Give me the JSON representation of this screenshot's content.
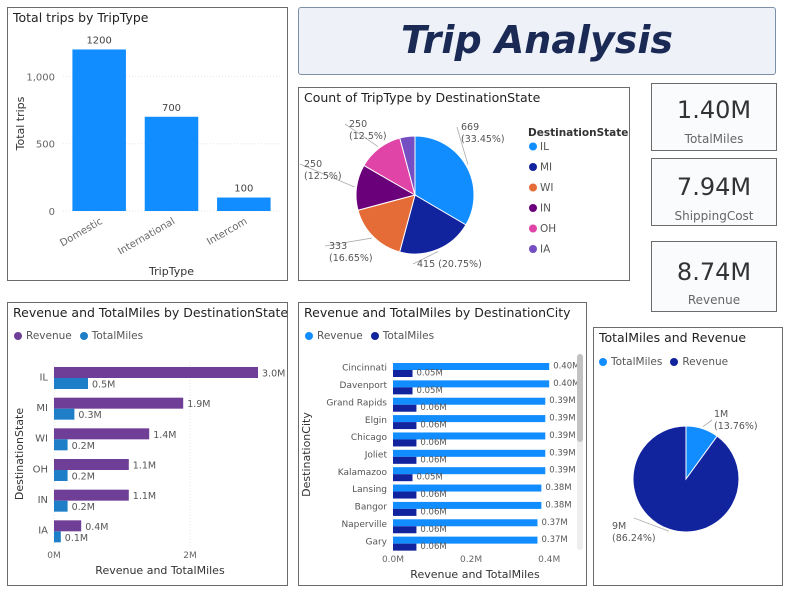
{
  "header": {
    "title": "Trip Analysis"
  },
  "cards": [
    {
      "value": "1.40M",
      "label": "TotalMiles"
    },
    {
      "value": "7.94M",
      "label": "ShippingCost"
    },
    {
      "value": "8.74M",
      "label": "Revenue"
    }
  ],
  "colors": {
    "bar_blue": "#118dff",
    "navy": "#12239e",
    "orange": "#e66c37",
    "purple": "#6b007b",
    "magenta": "#e044a7",
    "violet": "#744ec2",
    "dark_purple": "#6f3e96",
    "mid_blue": "#1e7ec8"
  },
  "chart_data": [
    {
      "type": "bar",
      "title": "Total trips by TripType",
      "xlabel": "TripType",
      "ylabel": "Total trips",
      "categories": [
        "Domestic",
        "International",
        "Intercom"
      ],
      "values": [
        1200,
        700,
        100
      ],
      "data_labels": [
        "1200",
        "700",
        "100"
      ],
      "yticks": [
        0,
        500,
        1000
      ],
      "ytick_labels": [
        "0",
        "500",
        "1,000"
      ],
      "ylim": [
        0,
        1300
      ]
    },
    {
      "type": "pie",
      "title": "Count of TripType by DestinationState",
      "legend_title": "DestinationState",
      "legend_position": "right",
      "categories": [
        "IL",
        "MI",
        "WI",
        "IN",
        "OH",
        "IA"
      ],
      "values": [
        669,
        415,
        333,
        250,
        250,
        83
      ],
      "labels": [
        "669\n(33.45%)",
        "415 (20.75%)",
        "333\n(16.65%)",
        "250\n(12.5%)",
        "250\n(12.5%)",
        ""
      ],
      "colors": [
        "#118dff",
        "#12239e",
        "#e66c37",
        "#6b007b",
        "#e044a7",
        "#744ec2"
      ]
    },
    {
      "type": "bar",
      "orientation": "horizontal",
      "title": "Revenue and TotalMiles by DestinationState",
      "xlabel": "Revenue and TotalMiles",
      "ylabel": "DestinationState",
      "legend_position": "top-left",
      "categories": [
        "IL",
        "MI",
        "WI",
        "OH",
        "IN",
        "IA"
      ],
      "series": [
        {
          "name": "Revenue",
          "values": [
            3.0,
            1.9,
            1.4,
            1.1,
            1.1,
            0.4
          ],
          "labels": [
            "3.0M",
            "1.9M",
            "1.4M",
            "1.1M",
            "1.1M",
            "0.4M"
          ]
        },
        {
          "name": "TotalMiles",
          "values": [
            0.5,
            0.3,
            0.2,
            0.2,
            0.2,
            0.1
          ],
          "labels": [
            "0.5M",
            "0.3M",
            "0.2M",
            "0.2M",
            "0.2M",
            "0.1M"
          ]
        }
      ],
      "xticks": [
        0,
        2
      ],
      "xtick_labels": [
        "0M",
        "2M"
      ],
      "xlim": [
        0,
        3.0
      ]
    },
    {
      "type": "bar",
      "orientation": "horizontal",
      "title": "Revenue and TotalMiles by DestinationCity",
      "xlabel": "Revenue and TotalMiles",
      "ylabel": "DestinationCity",
      "legend_position": "top-left",
      "categories": [
        "Cincinnati",
        "Davenport",
        "Grand Rapids",
        "Elgin",
        "Chicago",
        "Joliet",
        "Kalamazoo",
        "Lansing",
        "Bangor",
        "Naperville",
        "Gary"
      ],
      "series": [
        {
          "name": "Revenue",
          "values": [
            0.4,
            0.4,
            0.39,
            0.39,
            0.39,
            0.39,
            0.39,
            0.38,
            0.38,
            0.37,
            0.37
          ],
          "labels": [
            "0.40M",
            "0.40M",
            "0.39M",
            "0.39M",
            "0.39M",
            "0.39M",
            "0.39M",
            "0.38M",
            "0.38M",
            "0.37M",
            "0.37M"
          ]
        },
        {
          "name": "TotalMiles",
          "values": [
            0.05,
            0.05,
            0.06,
            0.06,
            0.06,
            0.06,
            0.05,
            0.06,
            0.06,
            0.06,
            0.06
          ],
          "labels": [
            "0.05M",
            "0.05M",
            "0.06M",
            "0.06M",
            "0.06M",
            "0.06M",
            "0.05M",
            "0.06M",
            "0.06M",
            "0.06M",
            "0.06M"
          ]
        }
      ],
      "xticks": [
        0,
        0.2,
        0.4
      ],
      "xtick_labels": [
        "0.0M",
        "0.2M",
        "0.4M"
      ],
      "xlim": [
        0,
        0.42
      ]
    },
    {
      "type": "pie",
      "title": "TotalMiles and Revenue",
      "legend_position": "top-left",
      "categories": [
        "TotalMiles",
        "Revenue"
      ],
      "values": [
        1,
        9
      ],
      "percentages": [
        13.76,
        86.24
      ],
      "labels": [
        "1M\n(13.76%)",
        "9M\n(86.24%)"
      ],
      "colors": [
        "#118dff",
        "#12239e"
      ]
    }
  ]
}
